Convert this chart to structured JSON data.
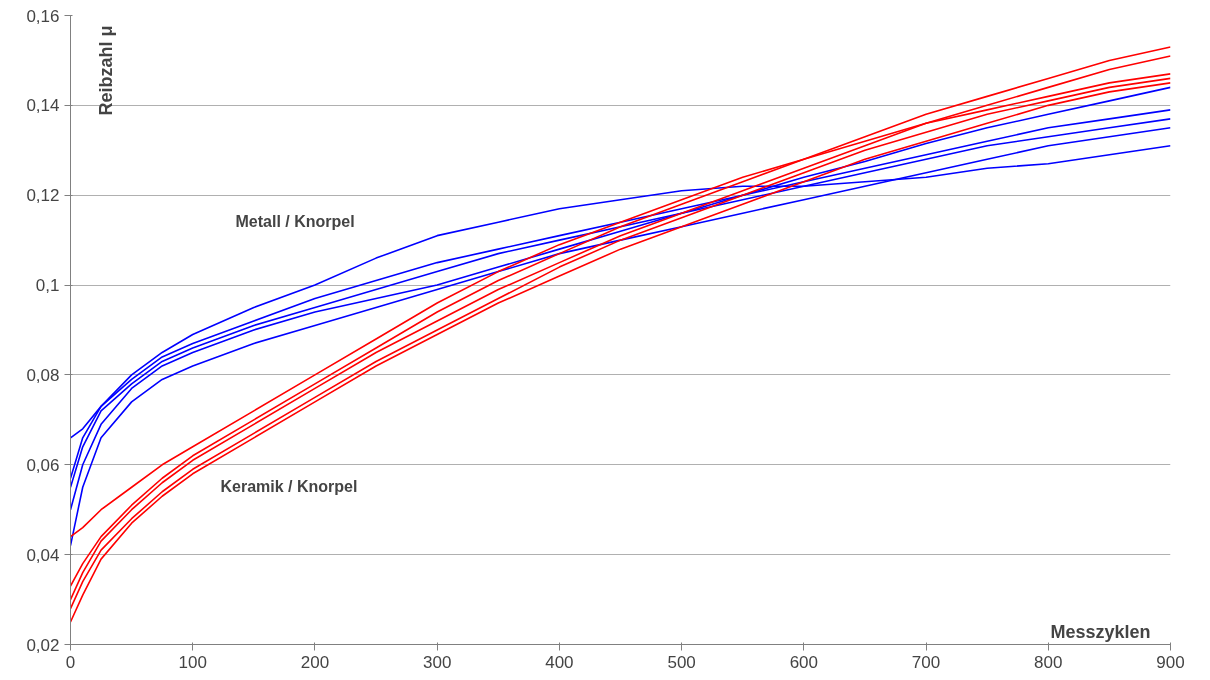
{
  "chart_data": {
    "type": "line",
    "ylabel": "Reibzahl μ",
    "xlabel": "Messzyklen",
    "x": [
      0,
      10,
      25,
      50,
      75,
      100,
      150,
      200,
      250,
      300,
      350,
      400,
      450,
      500,
      550,
      600,
      650,
      700,
      750,
      800,
      850,
      900
    ],
    "series": [
      {
        "color": "#0000ff",
        "values": [
          0.066,
          0.068,
          0.073,
          0.08,
          0.085,
          0.089,
          0.095,
          0.1,
          0.106,
          0.111,
          0.114,
          0.117,
          0.119,
          0.121,
          0.122,
          0.122,
          0.123,
          0.124,
          0.126,
          0.127,
          0.129,
          0.131
        ]
      },
      {
        "color": "#0000ff",
        "values": [
          0.057,
          0.066,
          0.073,
          0.079,
          0.084,
          0.087,
          0.092,
          0.097,
          0.101,
          0.105,
          0.108,
          0.111,
          0.114,
          0.117,
          0.12,
          0.123,
          0.126,
          0.129,
          0.132,
          0.135,
          0.137,
          0.139
        ]
      },
      {
        "color": "#0000ff",
        "values": [
          0.055,
          0.064,
          0.072,
          0.078,
          0.083,
          0.086,
          0.091,
          0.095,
          0.099,
          0.103,
          0.107,
          0.11,
          0.113,
          0.116,
          0.119,
          0.122,
          0.125,
          0.128,
          0.131,
          0.133,
          0.135,
          0.137
        ]
      },
      {
        "color": "#0000ff",
        "values": [
          0.05,
          0.06,
          0.069,
          0.077,
          0.082,
          0.085,
          0.09,
          0.094,
          0.097,
          0.1,
          0.104,
          0.108,
          0.112,
          0.116,
          0.12,
          0.124,
          0.1275,
          0.1315,
          0.135,
          0.138,
          0.141,
          0.144
        ]
      },
      {
        "color": "#0000ff",
        "values": [
          0.042,
          0.055,
          0.066,
          0.074,
          0.079,
          0.082,
          0.087,
          0.091,
          0.095,
          0.099,
          0.103,
          0.107,
          0.11,
          0.113,
          0.116,
          0.119,
          0.122,
          0.125,
          0.128,
          0.131,
          0.133,
          0.135
        ]
      },
      {
        "color": "#ff0000",
        "values": [
          0.044,
          0.046,
          0.05,
          0.055,
          0.06,
          0.064,
          0.072,
          0.08,
          0.088,
          0.096,
          0.103,
          0.109,
          0.114,
          0.119,
          0.124,
          0.128,
          0.132,
          0.136,
          0.139,
          0.142,
          0.145,
          0.147
        ]
      },
      {
        "color": "#ff0000",
        "values": [
          0.033,
          0.038,
          0.044,
          0.051,
          0.057,
          0.062,
          0.07,
          0.078,
          0.086,
          0.094,
          0.101,
          0.107,
          0.113,
          0.118,
          0.123,
          0.128,
          0.133,
          0.138,
          0.142,
          0.146,
          0.15,
          0.153
        ]
      },
      {
        "color": "#ff0000",
        "values": [
          0.03,
          0.036,
          0.043,
          0.05,
          0.056,
          0.061,
          0.069,
          0.077,
          0.085,
          0.092,
          0.099,
          0.105,
          0.111,
          0.116,
          0.121,
          0.126,
          0.131,
          0.136,
          0.14,
          0.144,
          0.148,
          0.151
        ]
      },
      {
        "color": "#ff0000",
        "values": [
          0.028,
          0.034,
          0.041,
          0.048,
          0.054,
          0.059,
          0.067,
          0.075,
          0.083,
          0.09,
          0.097,
          0.104,
          0.11,
          0.115,
          0.12,
          0.125,
          0.13,
          0.134,
          0.138,
          0.141,
          0.144,
          0.146
        ]
      },
      {
        "color": "#ff0000",
        "values": [
          0.025,
          0.031,
          0.039,
          0.047,
          0.053,
          0.058,
          0.066,
          0.074,
          0.082,
          0.089,
          0.096,
          0.102,
          0.108,
          0.113,
          0.118,
          0.123,
          0.128,
          0.132,
          0.136,
          0.14,
          0.143,
          0.145
        ]
      }
    ],
    "annotations": [
      "Metall / Knorpel",
      "Keramik / Knorpel"
    ],
    "xlim": [
      0,
      900
    ],
    "xticks": [
      0,
      100,
      200,
      300,
      400,
      500,
      600,
      700,
      800,
      900
    ],
    "ylim": [
      0.02,
      0.16
    ],
    "yticks": [
      {
        "value": 0.02,
        "label": "0,02"
      },
      {
        "value": 0.04,
        "label": "0,04"
      },
      {
        "value": 0.06,
        "label": "0,06"
      },
      {
        "value": 0.08,
        "label": "0,08"
      },
      {
        "value": 0.1,
        "label": "0,1"
      },
      {
        "value": 0.12,
        "label": "0,12"
      },
      {
        "value": 0.14,
        "label": "0,14"
      },
      {
        "value": 0.16,
        "label": "0,16"
      }
    ],
    "grid": "y",
    "line_style": "solid",
    "marker": "none"
  }
}
